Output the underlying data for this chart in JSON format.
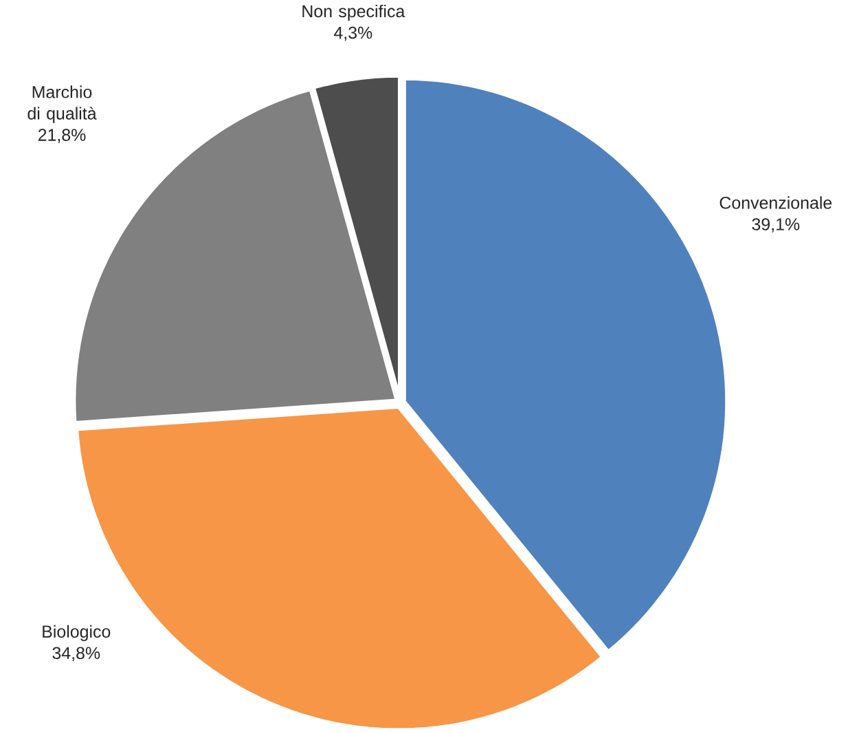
{
  "chart_data": {
    "type": "pie",
    "categories": [
      "Convenzionale",
      "Biologico",
      "Marchio di qualità",
      "Non specifica"
    ],
    "values": [
      39.1,
      34.8,
      21.8,
      4.3
    ],
    "value_labels": [
      "39,1%",
      "34,8%",
      "21,8%",
      "4,3%"
    ],
    "colors": [
      "#4f81bd",
      "#f79646",
      "#808080",
      "#4d4d4d"
    ]
  }
}
